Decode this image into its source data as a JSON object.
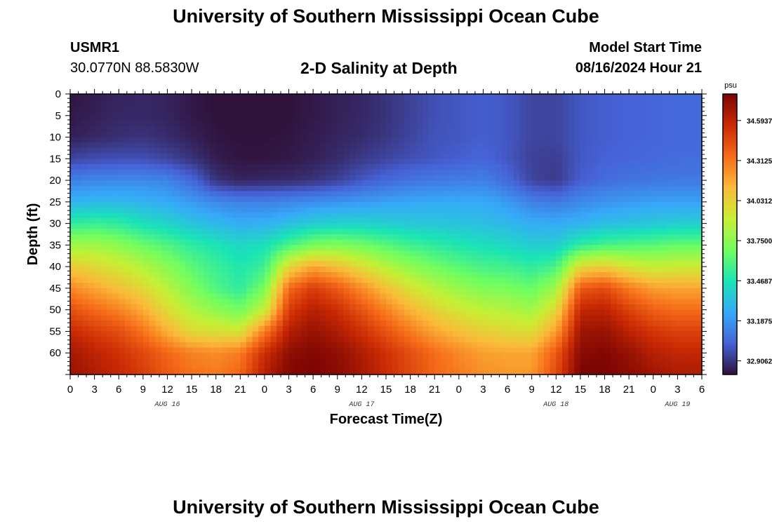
{
  "header": {
    "title": "University of Southern Mississippi Ocean Cube",
    "station_id": "USMR1",
    "station_coords": "30.0770N  88.5830W",
    "subtitle": "2-D Salinity at Depth",
    "model_start_label": "Model Start Time",
    "model_start_time": "08/16/2024 Hour 21"
  },
  "footer": {
    "title": "University of Southern Mississippi Ocean Cube"
  },
  "chart_data": {
    "type": "heatmap",
    "variable": "Salinity",
    "units": "psu",
    "xlabel": "Forecast Time(Z)",
    "ylabel": "Depth (ft)",
    "x_tick_labels": [
      "0",
      "3",
      "6",
      "9",
      "12",
      "15",
      "18",
      "21",
      "0",
      "3",
      "6",
      "9",
      "12",
      "15",
      "18",
      "21",
      "0",
      "3",
      "6",
      "9",
      "12",
      "15",
      "18",
      "21",
      "0",
      "3",
      "6"
    ],
    "x_day_labels": [
      {
        "label": "AUG 16",
        "at_hour": 12
      },
      {
        "label": "AUG 17",
        "at_hour": 36
      },
      {
        "label": "AUG 18",
        "at_hour": 60
      },
      {
        "label": "AUG 19",
        "at_hour": 75
      }
    ],
    "x_range_hours": [
      0,
      78
    ],
    "y_ticks": [
      0,
      5,
      10,
      15,
      20,
      25,
      30,
      35,
      40,
      45,
      50,
      55,
      60
    ],
    "y_range": [
      0,
      65
    ],
    "y_inverted": true,
    "colorbar": {
      "min": 32.81,
      "max": 34.78,
      "tick_values": [
        32.9062,
        33.1875,
        33.4687,
        33.75,
        34.0312,
        34.3125,
        34.5937
      ],
      "tick_labels": [
        "32.9062",
        "33.1875",
        "33.4687",
        "33.7500",
        "34.0312",
        "34.3125",
        "34.5937"
      ],
      "colormap": [
        "#30123b",
        "#4662d7",
        "#36aaf9",
        "#1ae4b6",
        "#72fe5e",
        "#c7ef34",
        "#faba39",
        "#f66b19",
        "#ca2a04",
        "#7a0403"
      ]
    },
    "profiles": {
      "time_hours": [
        0,
        3,
        6,
        9,
        12,
        15,
        18,
        21,
        24,
        27,
        30,
        33,
        36,
        39,
        42,
        45,
        48,
        51,
        54,
        57,
        60,
        63,
        66,
        69,
        72,
        75,
        78
      ],
      "depth_ft": [
        0,
        5,
        10,
        15,
        20,
        25,
        30,
        35,
        40,
        45,
        50,
        55,
        60,
        65
      ],
      "salinity": [
        [
          32.82,
          32.83,
          32.85,
          32.95,
          33.12,
          33.28,
          33.52,
          33.8,
          34.06,
          34.26,
          34.43,
          34.57,
          34.66,
          34.7
        ],
        [
          32.84,
          32.85,
          32.87,
          32.97,
          33.14,
          33.3,
          33.55,
          33.8,
          34.0,
          34.18,
          34.35,
          34.5,
          34.6,
          34.64
        ],
        [
          32.86,
          32.87,
          32.89,
          32.98,
          33.15,
          33.3,
          33.52,
          33.75,
          33.94,
          34.1,
          34.28,
          34.44,
          34.54,
          34.58
        ],
        [
          32.87,
          32.87,
          32.9,
          32.98,
          33.15,
          33.28,
          33.45,
          33.67,
          33.85,
          34.0,
          34.16,
          34.32,
          34.46,
          34.5
        ],
        [
          32.86,
          32.86,
          32.88,
          32.95,
          33.13,
          33.25,
          33.4,
          33.6,
          33.74,
          33.86,
          33.98,
          34.15,
          34.36,
          34.4
        ],
        [
          32.83,
          32.83,
          32.85,
          32.9,
          33.05,
          33.2,
          33.34,
          33.52,
          33.63,
          33.72,
          33.85,
          34.0,
          34.28,
          34.33
        ],
        [
          32.81,
          32.81,
          32.82,
          32.84,
          32.9,
          33.15,
          33.3,
          33.47,
          33.55,
          33.6,
          33.76,
          33.97,
          34.25,
          34.3
        ],
        [
          32.8,
          32.8,
          32.81,
          32.82,
          32.86,
          33.12,
          33.26,
          33.42,
          33.48,
          33.52,
          33.68,
          33.95,
          34.3,
          34.36
        ],
        [
          32.8,
          32.8,
          32.81,
          32.82,
          32.87,
          33.12,
          33.27,
          33.45,
          33.55,
          33.7,
          33.9,
          34.3,
          34.55,
          34.62
        ],
        [
          32.81,
          32.81,
          32.82,
          32.83,
          32.88,
          33.14,
          33.32,
          33.58,
          34.0,
          34.35,
          34.5,
          34.62,
          34.72,
          34.76
        ],
        [
          32.83,
          32.83,
          32.84,
          32.85,
          32.9,
          33.16,
          33.38,
          33.7,
          34.18,
          34.5,
          34.62,
          34.7,
          34.76,
          34.78
        ],
        [
          32.85,
          32.85,
          32.86,
          32.88,
          32.94,
          33.18,
          33.4,
          33.72,
          34.1,
          34.4,
          34.55,
          34.64,
          34.72,
          34.74
        ],
        [
          32.87,
          32.87,
          32.88,
          32.92,
          33.0,
          33.2,
          33.4,
          33.68,
          33.98,
          34.25,
          34.42,
          34.54,
          34.64,
          34.66
        ],
        [
          32.9,
          32.9,
          32.91,
          32.95,
          33.05,
          33.22,
          33.38,
          33.62,
          33.86,
          34.1,
          34.28,
          34.42,
          34.54,
          34.56
        ],
        [
          32.94,
          32.94,
          32.95,
          32.98,
          33.08,
          33.24,
          33.36,
          33.56,
          33.76,
          33.96,
          34.14,
          34.3,
          34.44,
          34.46
        ],
        [
          32.98,
          32.98,
          32.99,
          33.0,
          33.1,
          33.25,
          33.35,
          33.52,
          33.68,
          33.86,
          34.02,
          34.18,
          34.34,
          34.36
        ],
        [
          33.0,
          33.0,
          33.0,
          33.02,
          33.11,
          33.25,
          33.34,
          33.48,
          33.62,
          33.78,
          33.94,
          34.1,
          34.26,
          34.3
        ],
        [
          33.02,
          33.02,
          33.02,
          33.04,
          33.12,
          33.25,
          33.32,
          33.45,
          33.58,
          33.72,
          33.88,
          34.04,
          34.2,
          34.24
        ],
        [
          33.0,
          33.0,
          33.0,
          33.0,
          33.05,
          33.2,
          33.3,
          33.42,
          33.56,
          33.7,
          33.85,
          34.0,
          34.18,
          34.22
        ],
        [
          32.95,
          32.95,
          32.95,
          32.94,
          32.95,
          33.12,
          33.26,
          33.38,
          33.52,
          33.66,
          33.8,
          33.98,
          34.18,
          34.22
        ],
        [
          32.95,
          32.95,
          32.95,
          32.93,
          32.92,
          33.1,
          33.25,
          33.38,
          33.58,
          33.8,
          34.0,
          34.2,
          34.4,
          34.45
        ],
        [
          33.0,
          33.0,
          33.0,
          33.0,
          33.02,
          33.15,
          33.28,
          33.52,
          34.0,
          34.4,
          34.58,
          34.68,
          34.74,
          34.78
        ],
        [
          33.02,
          33.02,
          33.02,
          33.03,
          33.06,
          33.18,
          33.32,
          33.58,
          34.05,
          34.45,
          34.6,
          34.7,
          34.76,
          34.78
        ],
        [
          33.03,
          33.03,
          33.03,
          33.04,
          33.08,
          33.2,
          33.34,
          33.6,
          33.95,
          34.3,
          34.48,
          34.6,
          34.7,
          34.74
        ],
        [
          33.04,
          33.04,
          33.04,
          33.05,
          33.09,
          33.22,
          33.36,
          33.62,
          33.9,
          34.2,
          34.38,
          34.52,
          34.62,
          34.68
        ],
        [
          33.05,
          33.05,
          33.05,
          33.06,
          33.1,
          33.22,
          33.38,
          33.65,
          33.92,
          34.18,
          34.34,
          34.48,
          34.58,
          34.64
        ],
        [
          33.05,
          33.05,
          33.05,
          33.06,
          33.1,
          33.22,
          33.38,
          33.65,
          33.92,
          34.18,
          34.34,
          34.48,
          34.58,
          34.64
        ]
      ]
    }
  }
}
